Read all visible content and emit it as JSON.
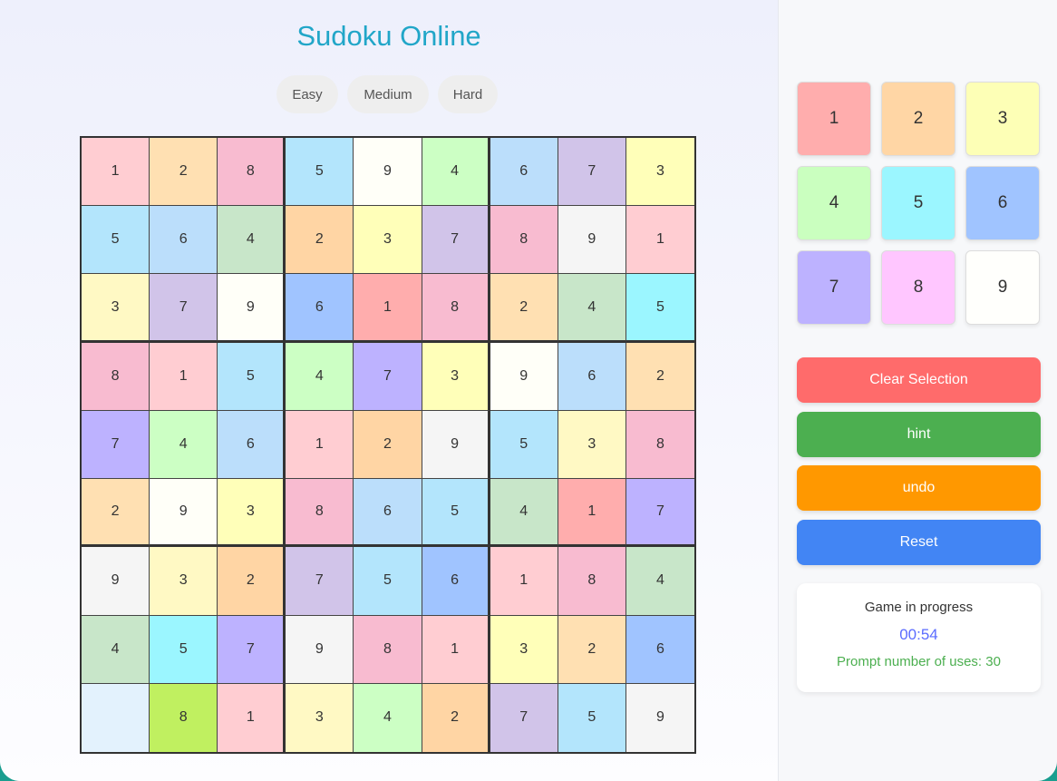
{
  "title": "Sudoku Online",
  "difficulty": [
    {
      "label": "Easy",
      "active": true
    },
    {
      "label": "Medium",
      "active": false
    },
    {
      "label": "Hard",
      "active": false
    }
  ],
  "board": [
    [
      [
        "1",
        "#ffcdd2"
      ],
      [
        "2",
        "#ffe0b2"
      ],
      [
        "8",
        "#f8bbd0"
      ],
      [
        "5",
        "#b3e5fc"
      ],
      [
        "9",
        "#fffff8"
      ],
      [
        "4",
        "#ccffc4"
      ],
      [
        "6",
        "#bbdefb"
      ],
      [
        "7",
        "#d1c4e9"
      ],
      [
        "3",
        "#ffffb9"
      ]
    ],
    [
      [
        "5",
        "#b3e5fc"
      ],
      [
        "6",
        "#bbdefb"
      ],
      [
        "4",
        "#c8e6c9"
      ],
      [
        "2",
        "#ffd5a4"
      ],
      [
        "3",
        "#ffffb9"
      ],
      [
        "7",
        "#d1c4e9"
      ],
      [
        "8",
        "#f8bbd0"
      ],
      [
        "9",
        "#f5f5f5"
      ],
      [
        "1",
        "#ffcdd2"
      ]
    ],
    [
      [
        "3",
        "#fff9c4"
      ],
      [
        "7",
        "#d1c4e9"
      ],
      [
        "9",
        "#fffff8"
      ],
      [
        "6",
        "#a0c4ff"
      ],
      [
        "1",
        "#ffadad"
      ],
      [
        "8",
        "#f8bbd0"
      ],
      [
        "2",
        "#ffe0b2"
      ],
      [
        "4",
        "#c8e6c9"
      ],
      [
        "5",
        "#9bf6ff"
      ]
    ],
    [
      [
        "8",
        "#f8bbd0"
      ],
      [
        "1",
        "#ffcdd2"
      ],
      [
        "5",
        "#b3e5fc"
      ],
      [
        "4",
        "#ccffc4"
      ],
      [
        "7",
        "#bdb2ff"
      ],
      [
        "3",
        "#ffffb9"
      ],
      [
        "9",
        "#fffff8"
      ],
      [
        "6",
        "#bbdefb"
      ],
      [
        "2",
        "#ffe0b2"
      ]
    ],
    [
      [
        "7",
        "#bdb2ff"
      ],
      [
        "4",
        "#ccffc4"
      ],
      [
        "6",
        "#bbdefb"
      ],
      [
        "1",
        "#ffcdd2"
      ],
      [
        "2",
        "#ffd5a4"
      ],
      [
        "9",
        "#f5f5f5"
      ],
      [
        "5",
        "#b3e5fc"
      ],
      [
        "3",
        "#fff9c4"
      ],
      [
        "8",
        "#f8bbd0"
      ]
    ],
    [
      [
        "2",
        "#ffe0b2"
      ],
      [
        "9",
        "#fffff8"
      ],
      [
        "3",
        "#ffffb9"
      ],
      [
        "8",
        "#f8bbd0"
      ],
      [
        "6",
        "#bbdefb"
      ],
      [
        "5",
        "#b3e5fc"
      ],
      [
        "4",
        "#c8e6c9"
      ],
      [
        "1",
        "#ffadad"
      ],
      [
        "7",
        "#bdb2ff"
      ]
    ],
    [
      [
        "9",
        "#f5f5f5"
      ],
      [
        "3",
        "#fff9c4"
      ],
      [
        "2",
        "#ffd5a4"
      ],
      [
        "7",
        "#d1c4e9"
      ],
      [
        "5",
        "#b3e5fc"
      ],
      [
        "6",
        "#a0c4ff"
      ],
      [
        "1",
        "#ffcdd2"
      ],
      [
        "8",
        "#f8bbd0"
      ],
      [
        "4",
        "#c8e6c9"
      ]
    ],
    [
      [
        "4",
        "#c8e6c9"
      ],
      [
        "5",
        "#9bf6ff"
      ],
      [
        "7",
        "#bdb2ff"
      ],
      [
        "9",
        "#f5f5f5"
      ],
      [
        "8",
        "#f8bbd0"
      ],
      [
        "1",
        "#ffcdd2"
      ],
      [
        "3",
        "#ffffb9"
      ],
      [
        "2",
        "#ffe0b2"
      ],
      [
        "6",
        "#a0c4ff"
      ]
    ],
    [
      [
        "",
        "#e3f2fd"
      ],
      [
        "8",
        "#c0f060"
      ],
      [
        "1",
        "#ffcdd2"
      ],
      [
        "3",
        "#fff9c4"
      ],
      [
        "4",
        "#ccffc4"
      ],
      [
        "2",
        "#ffd5a4"
      ],
      [
        "7",
        "#d1c4e9"
      ],
      [
        "5",
        "#b3e5fc"
      ],
      [
        "9",
        "#f5f5f5"
      ]
    ]
  ],
  "number_pad": [
    {
      "label": "1",
      "color": "#ffadad"
    },
    {
      "label": "2",
      "color": "#ffd6a5"
    },
    {
      "label": "3",
      "color": "#fdffb6"
    },
    {
      "label": "4",
      "color": "#caffbf"
    },
    {
      "label": "5",
      "color": "#9bf6ff"
    },
    {
      "label": "6",
      "color": "#a0c4ff"
    },
    {
      "label": "7",
      "color": "#bdb2ff"
    },
    {
      "label": "8",
      "color": "#ffc6ff"
    },
    {
      "label": "9",
      "color": "#fffffc"
    }
  ],
  "actions": [
    {
      "label": "Clear Selection",
      "color": "#ff6b6b"
    },
    {
      "label": "hint",
      "color": "#4caf50"
    },
    {
      "label": "undo",
      "color": "#ff9800"
    },
    {
      "label": "Reset",
      "color": "#4285f4"
    }
  ],
  "status": {
    "text": "Game in progress",
    "timer": "00:54",
    "hint_uses": "Prompt number of uses: 30"
  }
}
